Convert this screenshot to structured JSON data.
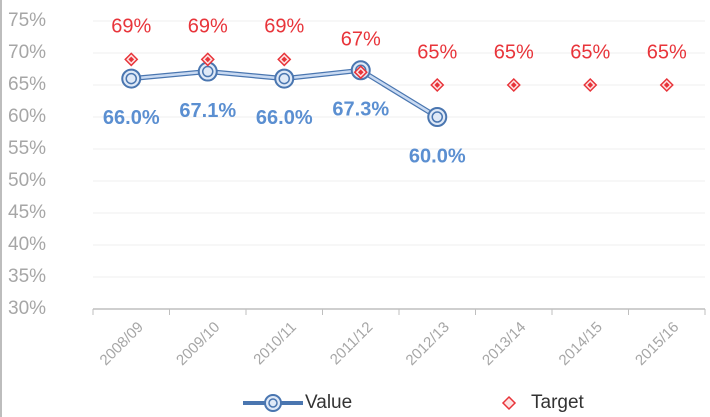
{
  "chart_data": {
    "type": "line",
    "categories": [
      "2008/09",
      "2009/10",
      "2010/11",
      "2011/12",
      "2012/13",
      "2013/14",
      "2014/15",
      "2015/16"
    ],
    "series": [
      {
        "name": "Value",
        "color": "#5b8fd1",
        "values": [
          66.0,
          67.1,
          66.0,
          67.3,
          60.0,
          null,
          null,
          null
        ],
        "value_labels": [
          "66.0%",
          "67.1%",
          "66.0%",
          "67.3%",
          "60.0%",
          null,
          null,
          null
        ]
      },
      {
        "name": "Target",
        "color": "#e8343a",
        "values": [
          69,
          69,
          69,
          67,
          65,
          65,
          65,
          65
        ],
        "value_labels": [
          "69%",
          "69%",
          "69%",
          "67%",
          "65%",
          "65%",
          "65%",
          "65%"
        ]
      }
    ],
    "ylim": [
      30,
      75
    ],
    "yticks": [
      {
        "value": 30,
        "label": "30%"
      },
      {
        "value": 35,
        "label": "35%"
      },
      {
        "value": 40,
        "label": "40%"
      },
      {
        "value": 45,
        "label": "45%"
      },
      {
        "value": 50,
        "label": "50%"
      },
      {
        "value": 55,
        "label": "55%"
      },
      {
        "value": 60,
        "label": "60%"
      },
      {
        "value": 65,
        "label": "65%"
      },
      {
        "value": 70,
        "label": "70%"
      },
      {
        "value": 75,
        "label": "75%"
      }
    ],
    "grid": true
  }
}
